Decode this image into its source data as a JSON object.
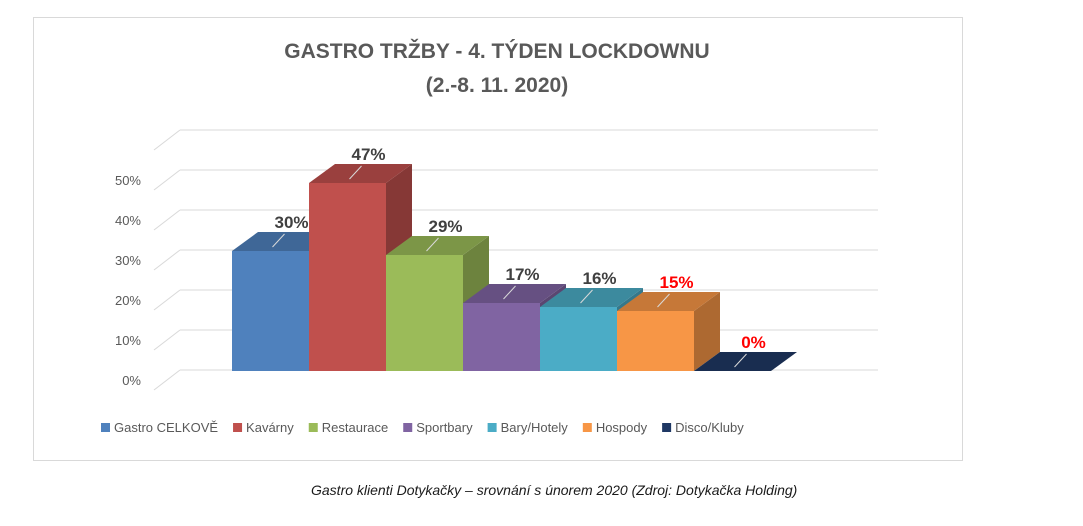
{
  "chart_data": {
    "type": "bar",
    "title": "GASTRO TRŽBY - 4. TÝDEN LOCKDOWNU",
    "subtitle": "(2.-8. 11. 2020)",
    "categories": [
      "Gastro CELKOVĚ",
      "Kavárny",
      "Restaurace",
      "Sportbary",
      "Bary/Hotely",
      "Hospody",
      "Disco/Kluby"
    ],
    "values": [
      30,
      47,
      29,
      17,
      16,
      15,
      0
    ],
    "data_labels": [
      "30%",
      "47%",
      "29%",
      "17%",
      "16%",
      "15%",
      "0%"
    ],
    "y_ticks": [
      "0%",
      "10%",
      "20%",
      "30%",
      "40%",
      "50%"
    ],
    "ylim": [
      0,
      60
    ],
    "grid": true,
    "legend_position": "bottom",
    "three_d": true,
    "colors": [
      "#4f81bd",
      "#c0504d",
      "#9bbb59",
      "#8064a2",
      "#4bacc6",
      "#f79646",
      "#1f3864"
    ],
    "label_colors": [
      "#404040",
      "#404040",
      "#404040",
      "#404040",
      "#404040",
      "#ff0000",
      "#ff0000"
    ]
  },
  "caption": "Gastro klienti Dotykačky – srovnání s únorem 2020 (Zdroj: Dotykačka Holding)"
}
